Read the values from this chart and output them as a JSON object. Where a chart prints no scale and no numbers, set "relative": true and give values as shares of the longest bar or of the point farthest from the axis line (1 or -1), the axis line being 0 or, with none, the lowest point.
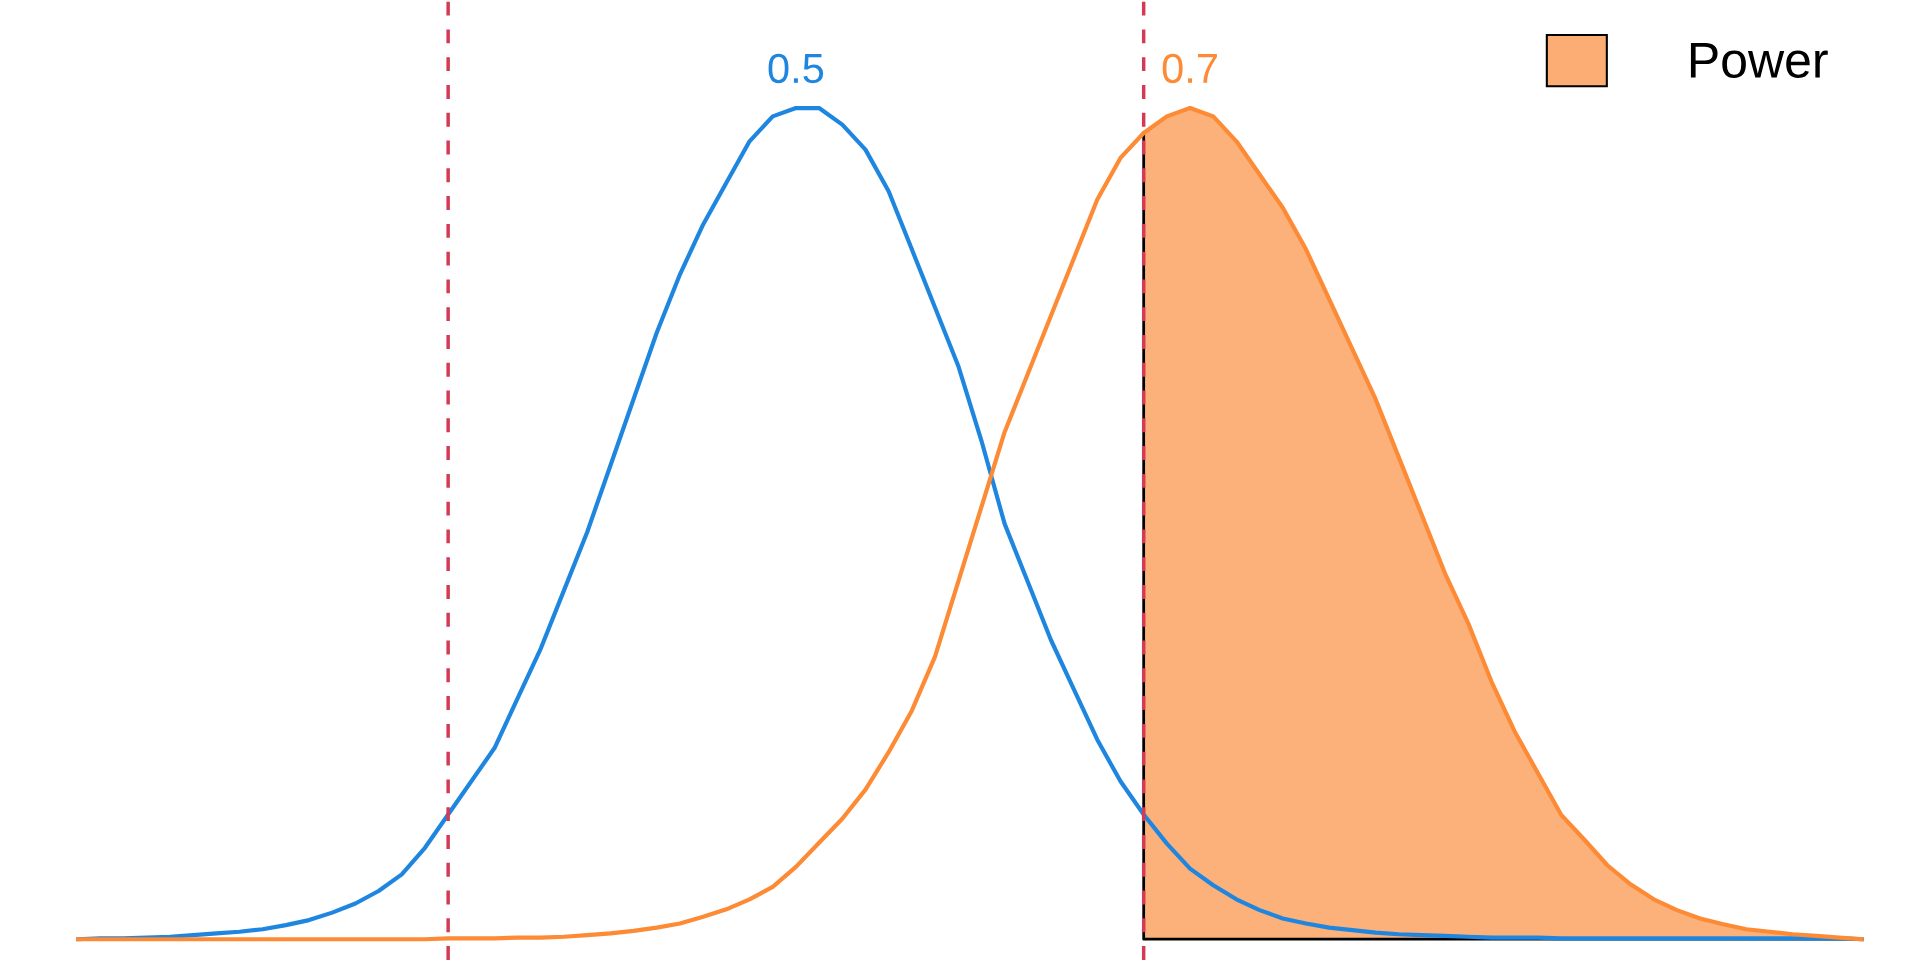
{
  "chart_data": {
    "type": "line",
    "relative": true,
    "legend": "top right",
    "categories": [
      null,
      null,
      null,
      null,
      null,
      null,
      null,
      null,
      null,
      null,
      null,
      null,
      null,
      null,
      null,
      null,
      null,
      null,
      null,
      null,
      null,
      null,
      null,
      null,
      null,
      null,
      null,
      null,
      null,
      null,
      null,
      null,
      null,
      null,
      null,
      null,
      null,
      null,
      null,
      null,
      null,
      null,
      null,
      null,
      null,
      null,
      null,
      null,
      null,
      null,
      null,
      null,
      null,
      null,
      null,
      null,
      null,
      null,
      null,
      null,
      null,
      null,
      null,
      null,
      null,
      null,
      null,
      null,
      null,
      null,
      null,
      null,
      null,
      null,
      null,
      null,
      null,
      null
    ],
    "series": [
      {
        "name": "0.5",
        "color": "#1f86e0",
        "values": [
          0,
          0.001,
          0.001,
          0.002,
          0.003,
          0.005,
          0.007,
          0.009,
          0.012,
          0.017,
          0.023,
          0.032,
          0.043,
          0.058,
          0.078,
          0.11,
          0.15,
          0.19,
          0.23,
          0.29,
          0.35,
          0.42,
          0.49,
          0.57,
          0.65,
          0.73,
          0.8,
          0.86,
          0.91,
          0.96,
          0.99,
          1.0,
          1.0,
          0.98,
          0.95,
          0.9,
          0.83,
          0.76,
          0.69,
          0.6,
          0.5,
          0.43,
          0.36,
          0.3,
          0.24,
          0.19,
          0.15,
          0.115,
          0.085,
          0.065,
          0.048,
          0.035,
          0.025,
          0.019,
          0.014,
          0.011,
          0.008,
          0.006,
          0.005,
          0.004,
          0.003,
          0.002,
          0.002,
          0.002,
          0.001,
          0.001,
          0.001,
          0.001,
          0.001,
          0.001,
          0.001,
          0.001,
          0.001,
          0.001,
          0.001,
          0.001,
          0.001,
          0
        ]
      },
      {
        "name": "0.7",
        "color": "#fd8a35",
        "values": [
          0,
          0,
          0,
          0,
          0,
          0,
          0,
          0,
          0,
          0,
          0,
          0,
          0,
          0,
          0,
          0,
          0.001,
          0.001,
          0.001,
          0.002,
          0.002,
          0.003,
          0.005,
          0.007,
          0.01,
          0.014,
          0.019,
          0.027,
          0.036,
          0.048,
          0.063,
          0.087,
          0.116,
          0.145,
          0.18,
          0.225,
          0.275,
          0.34,
          0.43,
          0.52,
          0.61,
          0.68,
          0.75,
          0.82,
          0.89,
          0.94,
          0.97,
          0.99,
          1.0,
          0.99,
          0.96,
          0.92,
          0.88,
          0.83,
          0.77,
          0.71,
          0.65,
          0.58,
          0.51,
          0.44,
          0.38,
          0.31,
          0.25,
          0.2,
          0.15,
          0.12,
          0.089,
          0.066,
          0.048,
          0.035,
          0.025,
          0.018,
          0.012,
          0.009,
          0.006,
          0.004,
          0.002,
          0
        ]
      },
      {
        "name": "Power",
        "type": "area",
        "color": "#fcad74",
        "values": [
          null,
          null,
          null,
          null,
          null,
          null,
          null,
          null,
          null,
          null,
          null,
          null,
          null,
          null,
          null,
          null,
          null,
          null,
          null,
          null,
          null,
          null,
          null,
          null,
          null,
          null,
          null,
          null,
          null,
          null,
          null,
          null,
          null,
          null,
          null,
          null,
          null,
          null,
          null,
          null,
          null,
          null,
          null,
          null,
          null,
          null,
          0.97,
          0.99,
          1.0,
          0.99,
          0.96,
          0.92,
          0.88,
          0.83,
          0.77,
          0.71,
          0.65,
          0.58,
          0.51,
          0.44,
          0.38,
          0.31,
          0.25,
          0.2,
          0.15,
          0.12,
          0.089,
          0.066,
          0.048,
          0.035,
          0.025,
          0.018,
          0.012,
          0.009,
          0.006,
          0.004,
          0.002,
          0
        ]
      }
    ]
  }
}
